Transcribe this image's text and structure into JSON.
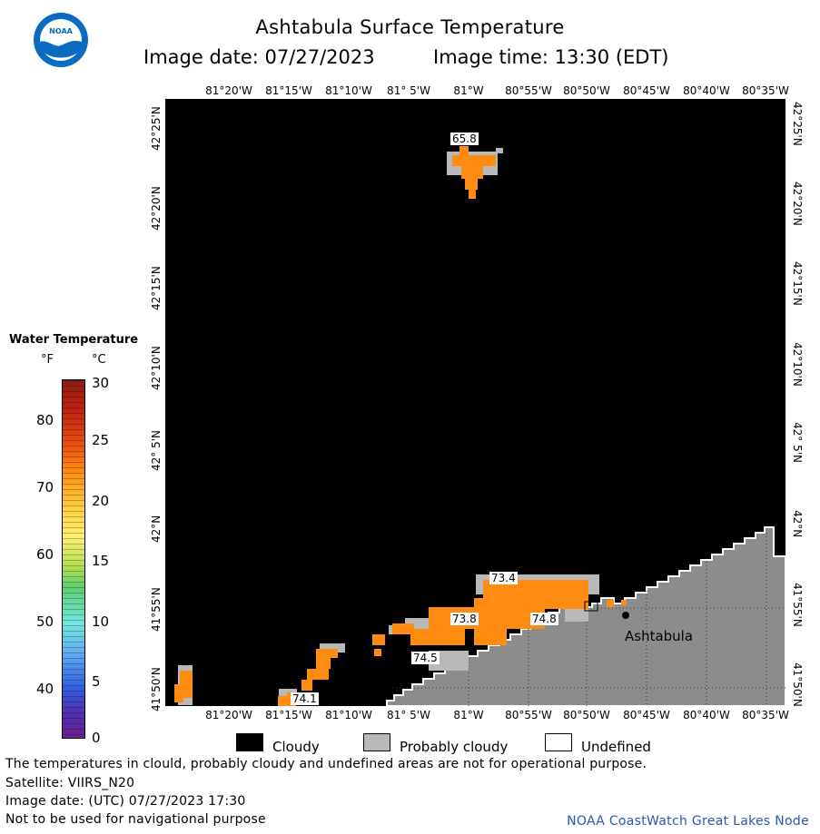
{
  "header": {
    "title": "Ashtabula Surface Temperature",
    "image_date": "Image date: 07/27/2023",
    "image_time": "Image time: 13:30 (EDT)"
  },
  "logo": {
    "text": "NOAA"
  },
  "map": {
    "lon_labels": [
      "81°20'W",
      "81°15'W",
      "81°10'W",
      "81° 5'W",
      "81°W",
      "80°55'W",
      "80°50'W",
      "80°45'W",
      "80°40'W",
      "80°35'W"
    ],
    "lat_labels": [
      "42°25'N",
      "42°20'N",
      "42°15'N",
      "42°10'N",
      "42° 5'N",
      "42°N",
      "41°55'N",
      "41°50'N"
    ],
    "temp_labels": [
      "65.8",
      "73.4",
      "73.8",
      "74.8",
      "74.5",
      "74.1"
    ],
    "place_label": "Ashtabula",
    "colors": {
      "water_obscured": "#000000",
      "land": "#8c8c8c",
      "probably_cloudy": "#b9b9b9",
      "temperature_fill": "#ff8c10"
    }
  },
  "legend": {
    "title": "Water Temperature",
    "unit_f": "°F",
    "unit_c": "°C",
    "f_ticks": [
      "80",
      "70",
      "60",
      "50",
      "40"
    ],
    "c_ticks": [
      "30",
      "25",
      "20",
      "15",
      "10",
      "5",
      "0"
    ]
  },
  "key": {
    "cloudy": "Cloudy",
    "probably_cloudy": "Probably cloudy",
    "undefined": "Undefined"
  },
  "footer": {
    "line1": "The temperatures in clould, probably cloudy and undefined areas are not for operational purpose.",
    "line2": "Satellite: VIIRS_N20",
    "line3": "Image date: (UTC) 07/27/2023  17:30",
    "line4": "Not to be used for navigational purpose",
    "credit": "NOAA CoastWatch Great Lakes Node"
  }
}
